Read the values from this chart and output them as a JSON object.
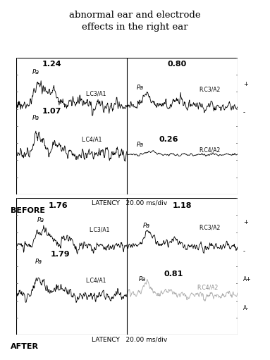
{
  "title": "abnormal ear and electrode\neffects in the right ear",
  "title_fontsize": 9.5,
  "background_color": "#ffffff",
  "panel_bg": "#ffffff",
  "before_label": "BEFORE",
  "after_label": "AFTER",
  "latency_label": "LATENCY   20.00 ms/div",
  "before_top_left_amp": "1.24",
  "before_top_right_amp": "0.80",
  "before_bot_left_amp": "1.07",
  "before_bot_right_amp": "0.26",
  "after_top_left_amp": "1.76",
  "after_top_right_amp": "1.18",
  "after_bot_left_amp": "1.79",
  "after_bot_right_amp": "0.81",
  "label_lc3a1": "L.C3/A1",
  "label_rc3a2": "R.C3/A2",
  "label_lc4a1": "L.C4/A1",
  "label_rc4a2": "R.C4/A2",
  "label_pa": "Pa",
  "scale_plus": "+",
  "scale_minus": "-",
  "scale_aplus": "A+",
  "scale_aminus": "A-",
  "waveform_lw": 0.6,
  "border_lw": 0.8,
  "tick_color": "#444444",
  "gray_color": "#aaaaaa"
}
